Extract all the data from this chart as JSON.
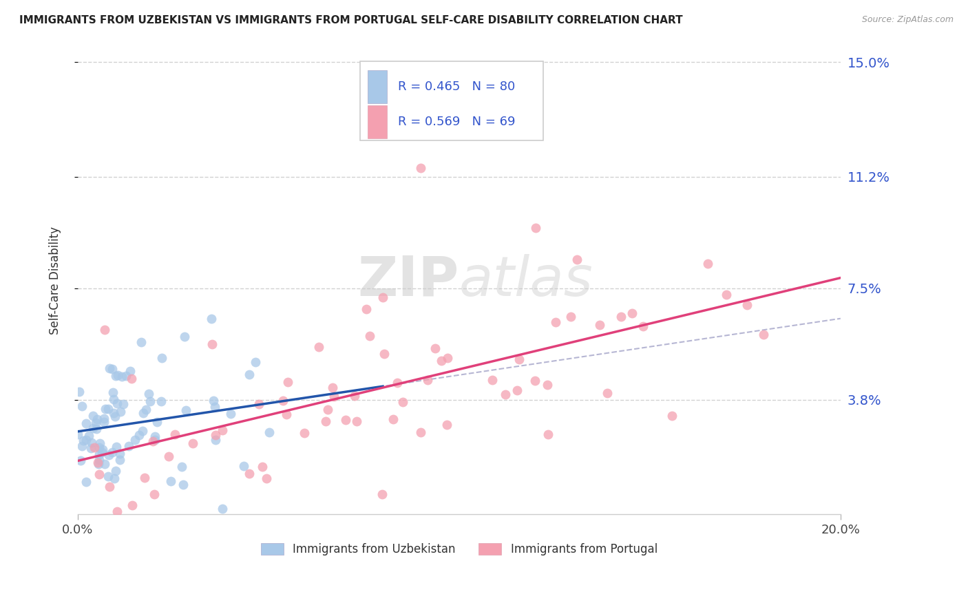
{
  "title": "IMMIGRANTS FROM UZBEKISTAN VS IMMIGRANTS FROM PORTUGAL SELF-CARE DISABILITY CORRELATION CHART",
  "source": "Source: ZipAtlas.com",
  "ylabel": "Self-Care Disability",
  "legend_label1": "Immigrants from Uzbekistan",
  "legend_label2": "Immigrants from Portugal",
  "R1": 0.465,
  "N1": 80,
  "R2": 0.569,
  "N2": 69,
  "color1": "#a8c8e8",
  "color2": "#f4a0b0",
  "trend_color1": "#2255aa",
  "trend_color2": "#e0407a",
  "dashed_color": "#aaaacc",
  "xlim": [
    0.0,
    0.2
  ],
  "ylim": [
    0.0,
    0.155
  ],
  "yticks": [
    0.038,
    0.075,
    0.112,
    0.15
  ],
  "ytick_labels": [
    "3.8%",
    "7.5%",
    "11.2%",
    "15.0%"
  ],
  "xtick_labels": [
    "0.0%",
    "20.0%"
  ],
  "background_color": "#ffffff",
  "watermark_zip": "ZIP",
  "watermark_atlas": "atlas",
  "text_color": "#3355cc"
}
